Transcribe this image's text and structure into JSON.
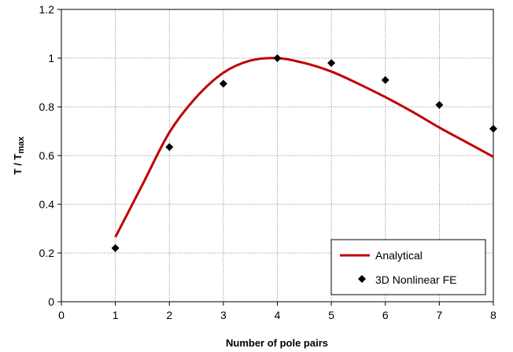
{
  "chart_data": {
    "type": "line",
    "title": "",
    "xlabel": "Number of pole pairs",
    "ylabel": {
      "main": "T / T",
      "sub": "max"
    },
    "xlim": [
      0,
      8
    ],
    "ylim": [
      0,
      1.2
    ],
    "xticks": [
      "0",
      "1",
      "2",
      "3",
      "4",
      "5",
      "6",
      "7",
      "8"
    ],
    "yticks": [
      "0",
      "0.2",
      "0.4",
      "0.6",
      "0.8",
      "1",
      "1.2"
    ],
    "grid": true,
    "legend_position": "bottom-right",
    "series": [
      {
        "name": "Analytical",
        "kind": "line",
        "color": "#c00000",
        "x": [
          1,
          1.5,
          2,
          2.5,
          3,
          3.5,
          4,
          4.5,
          5,
          5.5,
          6,
          6.5,
          7,
          7.5,
          8
        ],
        "y": [
          0.265,
          0.48,
          0.695,
          0.84,
          0.94,
          0.99,
          1.0,
          0.98,
          0.945,
          0.895,
          0.84,
          0.78,
          0.715,
          0.655,
          0.595
        ]
      },
      {
        "name": "3D Nonlinear FE",
        "kind": "scatter",
        "color": "#000000",
        "marker": "diamond",
        "x": [
          1,
          2,
          3,
          4,
          5,
          6,
          7,
          8
        ],
        "y": [
          0.22,
          0.635,
          0.895,
          1.0,
          0.98,
          0.91,
          0.808,
          0.71
        ]
      }
    ]
  }
}
